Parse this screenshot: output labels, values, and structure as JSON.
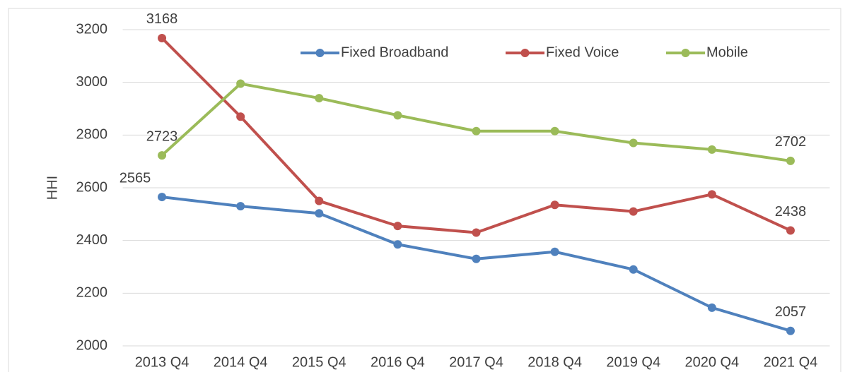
{
  "chart_data": {
    "type": "line",
    "y_label": "HHI",
    "categories": [
      "2013 Q4",
      "2014 Q4",
      "2015 Q4",
      "2016 Q4",
      "2017 Q4",
      "2018 Q4",
      "2019 Q4",
      "2020 Q4",
      "2021 Q4"
    ],
    "series": [
      {
        "name": "Fixed Broadband",
        "color": "#4f81bd",
        "values": [
          2565,
          2530,
          2503,
          2385,
          2330,
          2357,
          2290,
          2145,
          2057
        ],
        "data_labels": [
          0,
          8
        ]
      },
      {
        "name": "Fixed Voice",
        "color": "#c0504d",
        "values": [
          3168,
          2870,
          2550,
          2455,
          2430,
          2535,
          2510,
          2575,
          2438
        ],
        "data_labels": [
          0,
          8
        ]
      },
      {
        "name": "Mobile",
        "color": "#9bbb59",
        "values": [
          2723,
          2995,
          2940,
          2875,
          2815,
          2815,
          2770,
          2745,
          2702
        ],
        "data_labels": [
          0,
          8
        ]
      }
    ],
    "ylim": [
      2000,
      3200
    ],
    "yticks": [
      2000,
      2200,
      2400,
      2600,
      2800,
      3000,
      3200
    ],
    "grid": true,
    "legend": "top"
  }
}
